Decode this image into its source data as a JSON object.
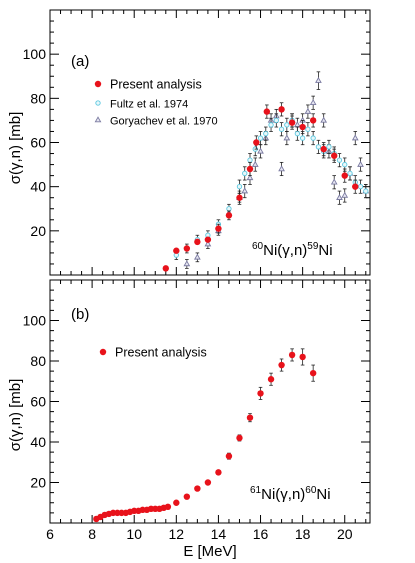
{
  "figure": {
    "xlabel": "E [MeV]",
    "xticks": [
      "6",
      "8",
      "10",
      "12",
      "14",
      "16",
      "18",
      "20"
    ]
  },
  "chart_data": [
    {
      "type": "scatter",
      "panel_label": "(a)",
      "reaction": {
        "pre": "60",
        "el1": "Ni(γ,n)",
        "mid": "59",
        "el2": "Ni"
      },
      "ylabel": "σ(γ,n) [mb]",
      "xlim": [
        6,
        21.2
      ],
      "ylim": [
        0,
        120
      ],
      "yticks": [
        "20",
        "40",
        "60",
        "80",
        "100"
      ],
      "legend_position": "upper-left",
      "series": [
        {
          "name": "Present analysis",
          "marker": "filled-circle",
          "color": "#e8121b",
          "x": [
            11.5,
            12.0,
            12.5,
            13.0,
            13.5,
            14.0,
            14.5,
            15.0,
            15.5,
            15.8,
            16.3,
            17.0,
            17.5,
            18.0,
            18.5,
            19.0,
            19.5,
            20.0,
            20.5
          ],
          "y": [
            3,
            11,
            12,
            15,
            16,
            21,
            27,
            35,
            48,
            60,
            74,
            75,
            69,
            67,
            70,
            57,
            54,
            45,
            40
          ],
          "err": [
            1,
            1,
            1,
            1,
            1,
            2,
            2,
            2,
            3,
            3,
            3,
            3,
            3,
            3,
            3,
            3,
            3,
            3,
            3
          ]
        },
        {
          "name": "Fultz et al. 1974",
          "marker": "open-circle",
          "color": "#5bc8e0",
          "x": [
            12.0,
            12.5,
            13.0,
            13.5,
            14.0,
            14.5,
            15.0,
            15.25,
            15.5,
            15.75,
            16.0,
            16.25,
            16.5,
            16.75,
            17.0,
            17.25,
            17.5,
            17.75,
            18.0,
            18.25,
            18.5,
            18.75,
            19.0,
            19.25,
            19.5,
            19.75,
            20.0,
            20.25,
            20.5,
            20.75,
            21.0
          ],
          "y": [
            9,
            12,
            16,
            18,
            23,
            30,
            40,
            46,
            52,
            57,
            62,
            64,
            68,
            70,
            66,
            68,
            70,
            64,
            62,
            66,
            62,
            58,
            56,
            58,
            55,
            52,
            50,
            46,
            42,
            40,
            38
          ],
          "err": [
            2,
            2,
            2,
            2,
            2,
            2,
            3,
            3,
            3,
            3,
            3,
            3,
            3,
            3,
            3,
            3,
            3,
            3,
            3,
            3,
            3,
            3,
            3,
            3,
            3,
            3,
            3,
            3,
            3,
            3,
            3
          ]
        },
        {
          "name": "Goryachev et al. 1970",
          "marker": "open-triangle",
          "color": "#7a7aa0",
          "x": [
            12.5,
            13.0,
            13.5,
            14.0,
            14.5,
            15.0,
            15.25,
            15.5,
            15.75,
            16.0,
            16.25,
            16.5,
            16.75,
            17.0,
            17.25,
            17.5,
            17.75,
            18.0,
            18.25,
            18.5,
            18.75,
            19.0,
            19.25,
            19.5,
            19.75,
            20.0,
            20.25,
            20.5,
            20.75,
            21.0
          ],
          "y": [
            5,
            8,
            14,
            20,
            28,
            35,
            38,
            44,
            50,
            56,
            62,
            70,
            72,
            48,
            62,
            70,
            68,
            70,
            74,
            78,
            88,
            70,
            56,
            42,
            35,
            36,
            46,
            62,
            50,
            38
          ],
          "err": [
            2,
            2,
            2,
            2,
            2,
            3,
            3,
            3,
            3,
            3,
            3,
            3,
            3,
            3,
            3,
            3,
            3,
            3,
            3,
            3,
            4,
            3,
            3,
            3,
            3,
            3,
            3,
            3,
            3,
            3
          ]
        }
      ]
    },
    {
      "type": "scatter",
      "panel_label": "(b)",
      "reaction": {
        "pre": "61",
        "el1": "Ni(γ,n)",
        "mid": "60",
        "el2": "Ni"
      },
      "ylabel": "σ(γ,n) [mb]",
      "xlim": [
        6,
        21.2
      ],
      "ylim": [
        0,
        120
      ],
      "yticks": [
        "20",
        "40",
        "60",
        "80",
        "100"
      ],
      "legend_position": "upper-left",
      "series": [
        {
          "name": "Present analysis",
          "marker": "filled-circle",
          "color": "#e8121b",
          "x": [
            8.2,
            8.4,
            8.6,
            8.8,
            9.0,
            9.2,
            9.4,
            9.6,
            9.8,
            10.0,
            10.2,
            10.4,
            10.6,
            10.8,
            11.0,
            11.2,
            11.4,
            11.6,
            12.0,
            12.5,
            13.0,
            13.5,
            14.0,
            14.5,
            15.0,
            15.5,
            16.0,
            16.5,
            17.0,
            17.5,
            18.0,
            18.5
          ],
          "y": [
            2,
            3,
            4,
            4.5,
            5,
            5,
            5,
            5,
            5.5,
            6,
            6,
            6.5,
            6.5,
            7,
            7,
            7,
            7.5,
            8,
            10,
            13,
            17,
            20,
            25,
            33,
            42,
            52,
            64,
            71,
            78,
            83,
            82,
            74
          ],
          "err": [
            0.5,
            0.5,
            0.5,
            0.5,
            0.5,
            0.5,
            0.5,
            0.5,
            0.5,
            0.5,
            0.5,
            0.5,
            0.5,
            0.5,
            0.5,
            0.5,
            0.5,
            0.5,
            0.8,
            1,
            1,
            1,
            1,
            1.5,
            1.5,
            2,
            3,
            3,
            3,
            3,
            4,
            4
          ]
        }
      ]
    }
  ]
}
